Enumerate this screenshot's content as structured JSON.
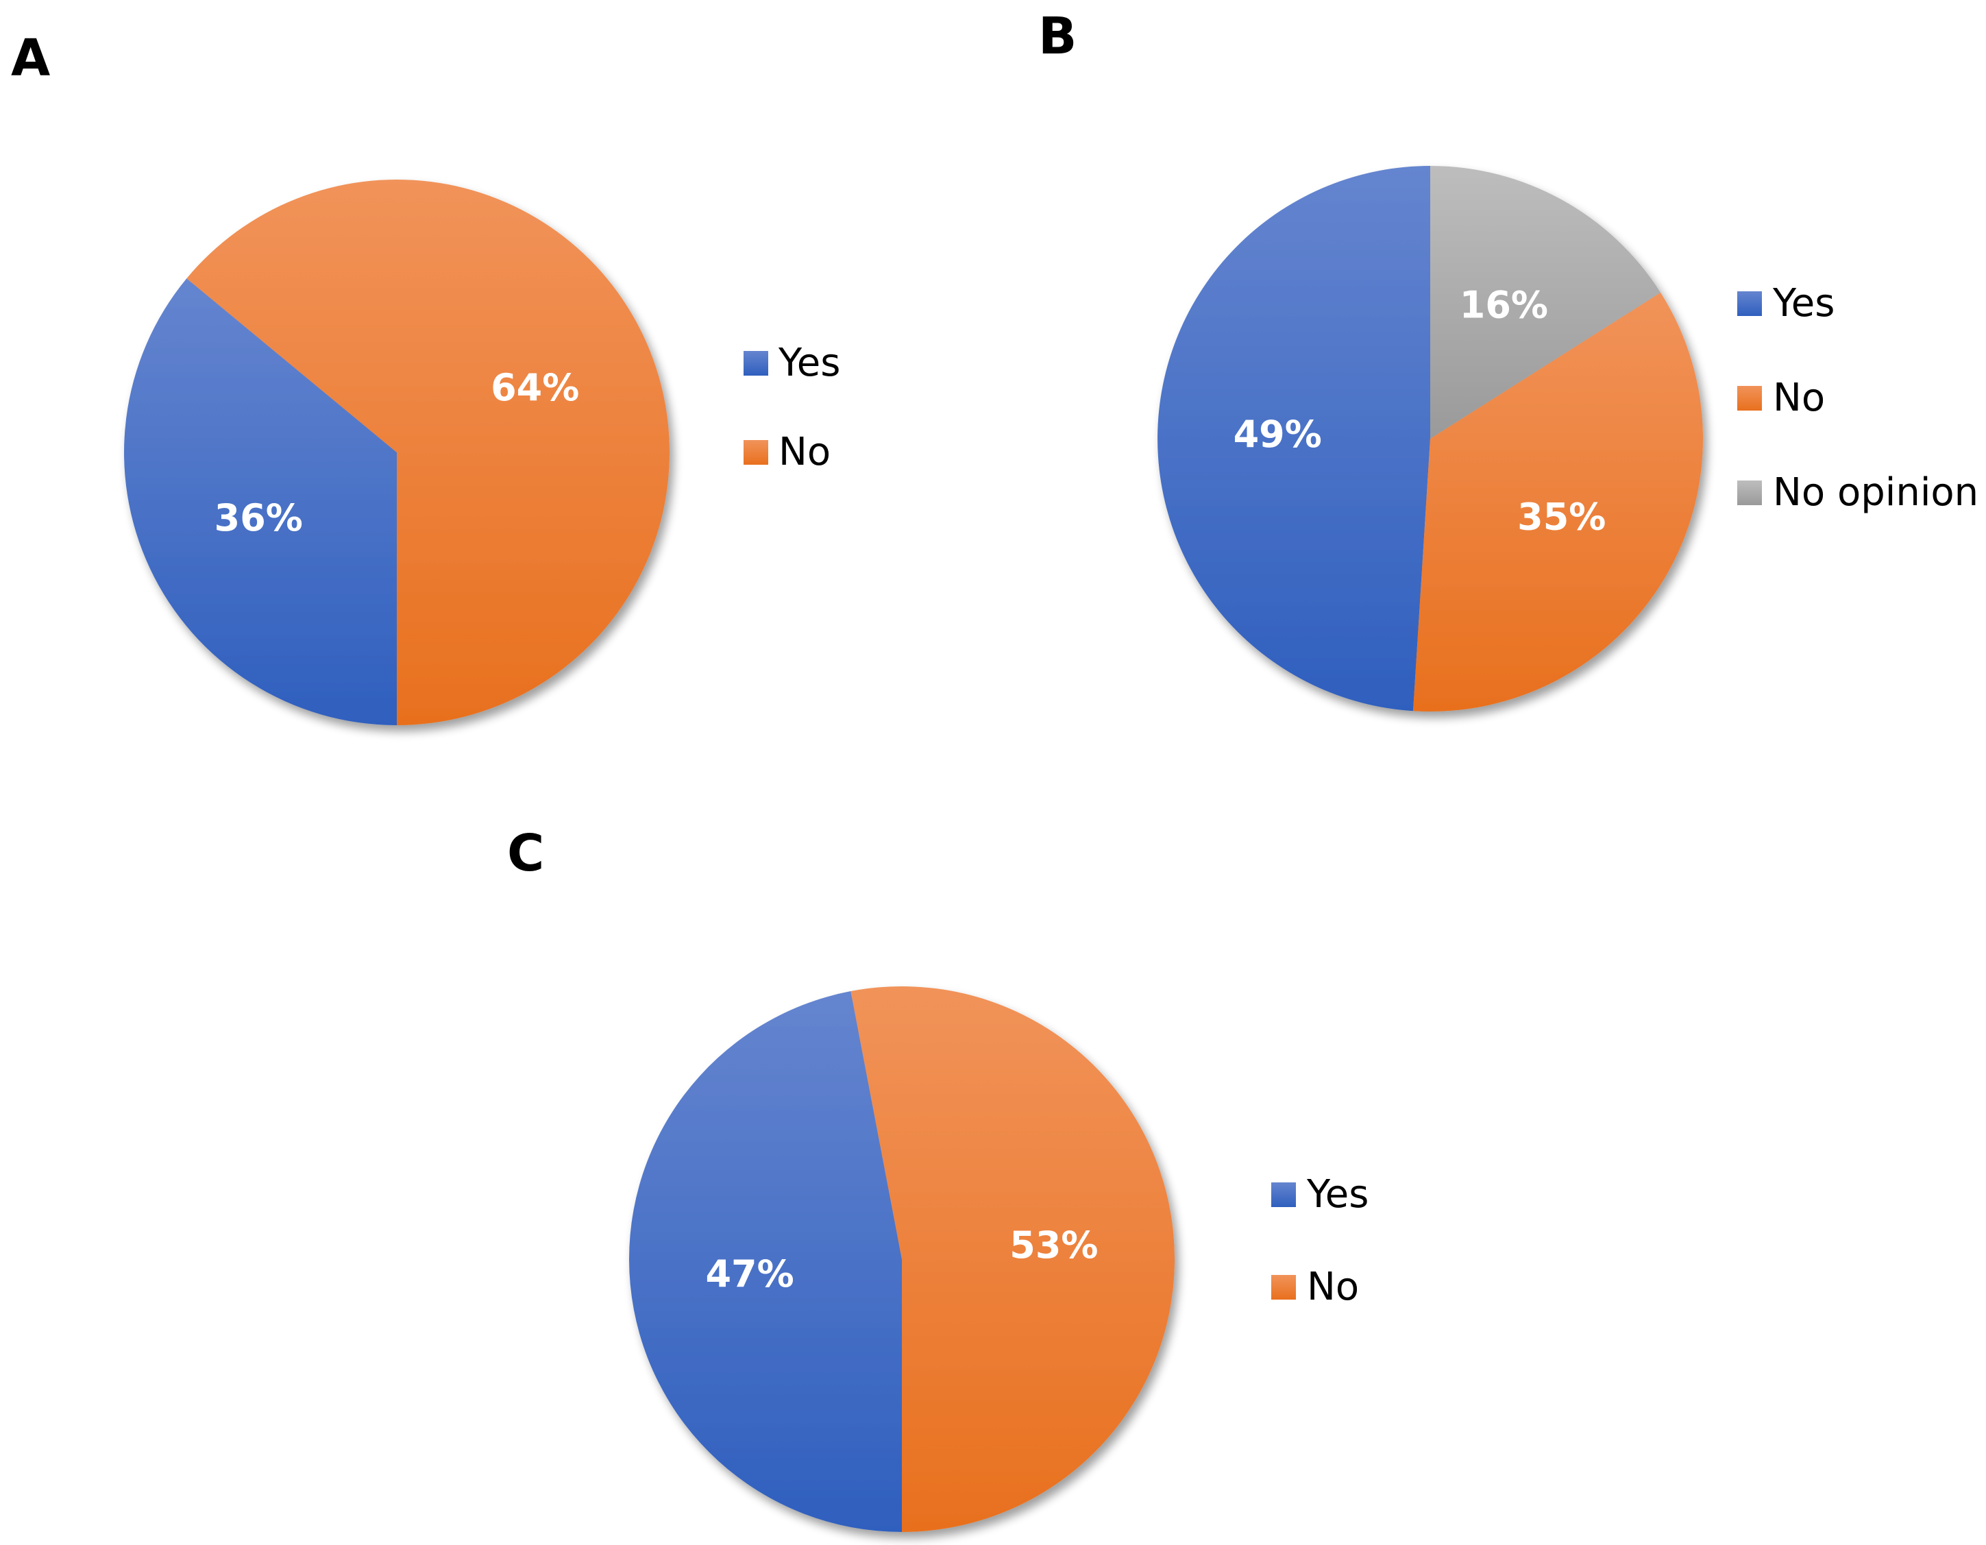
{
  "chart_data": [
    {
      "panel": "A",
      "type": "pie",
      "categories": [
        "Yes",
        "No"
      ],
      "values": [
        36,
        64
      ],
      "labels": [
        "36%",
        "64%"
      ],
      "colors": [
        "#4472C4",
        "#ED7D31"
      ],
      "legend": {
        "position": "right",
        "entries": [
          "Yes",
          "No"
        ]
      }
    },
    {
      "panel": "B",
      "type": "pie",
      "categories": [
        "Yes",
        "No",
        "No opinion"
      ],
      "values": [
        49,
        35,
        16
      ],
      "labels": [
        "49%",
        "35%",
        "16%"
      ],
      "colors": [
        "#4472C4",
        "#ED7D31",
        "#A5A5A5"
      ],
      "legend": {
        "position": "right",
        "entries": [
          "Yes",
          "No",
          "No opinion"
        ]
      }
    },
    {
      "panel": "C",
      "type": "pie",
      "categories": [
        "Yes",
        "No"
      ],
      "values": [
        47,
        53
      ],
      "labels": [
        "47%",
        "53%"
      ],
      "colors": [
        "#4472C4",
        "#ED7D31"
      ],
      "legend": {
        "position": "right",
        "entries": [
          "Yes",
          "No"
        ]
      }
    }
  ]
}
